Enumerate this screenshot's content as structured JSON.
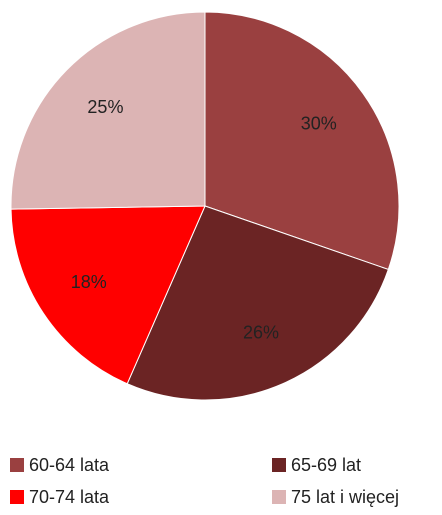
{
  "chart_data": {
    "type": "pie",
    "categories": [
      "60-64 lata",
      "65-69 lat",
      "70-74 lata",
      "75 lat i więcej"
    ],
    "values": [
      30,
      26,
      18,
      25
    ],
    "value_labels": [
      "30%",
      "26%",
      "18%",
      "25%"
    ],
    "colors": [
      "#9a4040",
      "#6b2424",
      "#ff0000",
      "#dcb4b4"
    ],
    "legend": "bottom"
  }
}
